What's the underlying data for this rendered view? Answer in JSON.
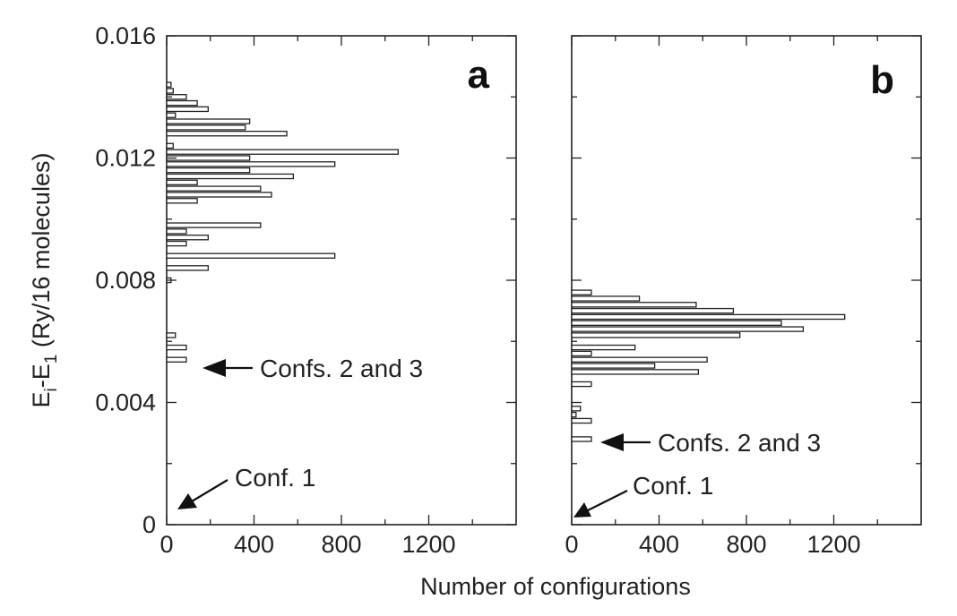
{
  "chart_data": [
    {
      "type": "bar",
      "orientation": "horizontal",
      "panel_label": "a",
      "xlabel": "Number of configurations",
      "ylabel": "E",
      "ylabel_sub_i": "i",
      "ylabel_dash": "-E",
      "ylabel_sub_1": "1",
      "ylabel_rest": " (Ry/16 molecules)",
      "xlim": [
        0,
        1600
      ],
      "ylim": [
        0,
        0.016
      ],
      "x_ticks": [
        "0",
        "400",
        "800",
        "1200"
      ],
      "x_tick_values": [
        0,
        400,
        800,
        1200
      ],
      "y_ticks": [
        "0",
        "0.004",
        "0.008",
        "0.012",
        "0.016"
      ],
      "y_tick_values": [
        0,
        0.004,
        0.008,
        0.012,
        0.016
      ],
      "bin_width": 0.0002,
      "bars": [
        {
          "y": 0.0144,
          "count": 20
        },
        {
          "y": 0.0142,
          "count": 30
        },
        {
          "y": 0.014,
          "count": 90
        },
        {
          "y": 0.0138,
          "count": 140
        },
        {
          "y": 0.0136,
          "count": 190
        },
        {
          "y": 0.0134,
          "count": 40
        },
        {
          "y": 0.0132,
          "count": 380
        },
        {
          "y": 0.013,
          "count": 360
        },
        {
          "y": 0.0128,
          "count": 550
        },
        {
          "y": 0.0124,
          "count": 30
        },
        {
          "y": 0.0122,
          "count": 1060
        },
        {
          "y": 0.012,
          "count": 380
        },
        {
          "y": 0.0118,
          "count": 770
        },
        {
          "y": 0.0116,
          "count": 380
        },
        {
          "y": 0.0114,
          "count": 580
        },
        {
          "y": 0.0112,
          "count": 140
        },
        {
          "y": 0.011,
          "count": 430
        },
        {
          "y": 0.0108,
          "count": 480
        },
        {
          "y": 0.0106,
          "count": 140
        },
        {
          "y": 0.0098,
          "count": 430
        },
        {
          "y": 0.0096,
          "count": 90
        },
        {
          "y": 0.0094,
          "count": 190
        },
        {
          "y": 0.0092,
          "count": 90
        },
        {
          "y": 0.0088,
          "count": 770
        },
        {
          "y": 0.0084,
          "count": 190
        },
        {
          "y": 0.008,
          "count": 20
        },
        {
          "y": 0.0062,
          "count": 40
        },
        {
          "y": 0.0058,
          "count": 90
        },
        {
          "y": 0.0054,
          "count": 90
        }
      ],
      "annotations": [
        {
          "text": "Confs. 2 and 3",
          "y": 0.0053
        },
        {
          "text": "Conf. 1",
          "y": 0.0002
        }
      ]
    },
    {
      "type": "bar",
      "orientation": "horizontal",
      "panel_label": "b",
      "xlim": [
        0,
        1600
      ],
      "ylim": [
        0,
        0.016
      ],
      "x_ticks": [
        "0",
        "400",
        "800",
        "1200"
      ],
      "x_tick_values": [
        0,
        400,
        800,
        1200
      ],
      "bin_width": 0.0002,
      "bars": [
        {
          "y": 0.0076,
          "count": 90
        },
        {
          "y": 0.0074,
          "count": 310
        },
        {
          "y": 0.0072,
          "count": 570
        },
        {
          "y": 0.007,
          "count": 740
        },
        {
          "y": 0.0068,
          "count": 1250
        },
        {
          "y": 0.0066,
          "count": 960
        },
        {
          "y": 0.0064,
          "count": 1060
        },
        {
          "y": 0.0062,
          "count": 770
        },
        {
          "y": 0.0058,
          "count": 290
        },
        {
          "y": 0.0056,
          "count": 90
        },
        {
          "y": 0.0054,
          "count": 620
        },
        {
          "y": 0.0052,
          "count": 380
        },
        {
          "y": 0.005,
          "count": 580
        },
        {
          "y": 0.0046,
          "count": 90
        },
        {
          "y": 0.0038,
          "count": 40
        },
        {
          "y": 0.0036,
          "count": 20
        },
        {
          "y": 0.0034,
          "count": 90
        },
        {
          "y": 0.0028,
          "count": 90
        }
      ],
      "annotations": [
        {
          "text": "Confs. 2 and 3",
          "y": 0.0028
        },
        {
          "text": "Conf. 1",
          "y": 0.0001
        }
      ]
    }
  ]
}
